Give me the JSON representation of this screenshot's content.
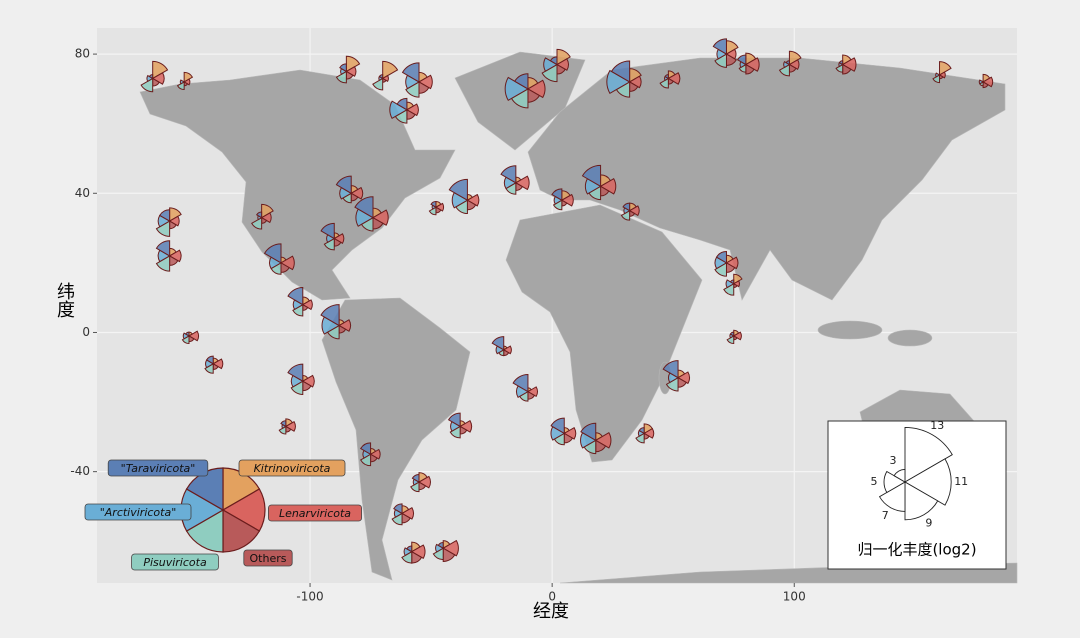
{
  "chart_data": {
    "type": "glyph-map",
    "xlabel": "经度",
    "ylabel": "纬度",
    "xlim": [
      -188,
      192
    ],
    "ylim": [
      -72,
      87.5
    ],
    "xticks": [
      -100,
      0,
      100
    ],
    "yticks": [
      -40,
      0,
      40,
      80
    ],
    "grid": true,
    "groups": [
      {
        "name": "Kitrinoviricota",
        "color": "#e3a15f"
      },
      {
        "name": "Lenarviricota",
        "color": "#d9645f"
      },
      {
        "name": "Others",
        "color": "#b85a5a"
      },
      {
        "name": "Pisuviricota",
        "color": "#8fcdc0"
      },
      {
        "name": "\"Arctiviricota\"",
        "color": "#6aaed6"
      },
      {
        "name": "\"Taraviricota\"",
        "color": "#5b7fb5"
      }
    ],
    "abundance_key": {
      "title": "归一化丰度(log2)",
      "ticks": [
        3,
        5,
        7,
        9,
        11,
        13
      ]
    },
    "sites": [
      {
        "lon": -165,
        "lat": 73,
        "values": [
          9,
          6,
          4,
          7,
          3,
          2
        ]
      },
      {
        "lon": -152,
        "lat": 72,
        "values": [
          5,
          3,
          2,
          4,
          2,
          0
        ]
      },
      {
        "lon": -85,
        "lat": 75,
        "values": [
          8,
          5,
          4,
          6,
          3,
          4
        ]
      },
      {
        "lon": -70,
        "lat": 73,
        "values": [
          9,
          3,
          2,
          6,
          2,
          2
        ]
      },
      {
        "lon": -55,
        "lat": 72,
        "values": [
          5,
          7,
          6,
          8,
          7,
          10
        ]
      },
      {
        "lon": -60,
        "lat": 64,
        "values": [
          4,
          6,
          5,
          7,
          9,
          6
        ]
      },
      {
        "lon": -10,
        "lat": 70,
        "values": [
          6,
          9,
          7,
          10,
          12,
          8
        ]
      },
      {
        "lon": 2,
        "lat": 77,
        "values": [
          8,
          6,
          5,
          9,
          7,
          4
        ]
      },
      {
        "lon": 32,
        "lat": 72,
        "values": [
          7,
          6,
          5,
          8,
          12,
          11
        ]
      },
      {
        "lon": 48,
        "lat": 73,
        "values": [
          4,
          6,
          3,
          5,
          2,
          2
        ]
      },
      {
        "lon": 72,
        "lat": 80,
        "values": [
          7,
          5,
          6,
          7,
          5,
          8
        ]
      },
      {
        "lon": 80,
        "lat": 77,
        "values": [
          6,
          7,
          5,
          4,
          3,
          5
        ]
      },
      {
        "lon": 98,
        "lat": 77,
        "values": [
          7,
          5,
          4,
          6,
          3,
          2
        ]
      },
      {
        "lon": 120,
        "lat": 77,
        "values": [
          5,
          7,
          5,
          4,
          2,
          2
        ]
      },
      {
        "lon": 160,
        "lat": 74,
        "values": [
          7,
          3,
          2,
          4,
          2,
          0
        ]
      },
      {
        "lon": 178,
        "lat": 72,
        "values": [
          4,
          5,
          3,
          2,
          2,
          0
        ]
      },
      {
        "lon": -158,
        "lat": 32,
        "values": [
          7,
          5,
          4,
          8,
          6,
          6
        ]
      },
      {
        "lon": -158,
        "lat": 22,
        "values": [
          4,
          6,
          5,
          8,
          6,
          8
        ]
      },
      {
        "lon": -112,
        "lat": 20,
        "values": [
          3,
          7,
          5,
          6,
          6,
          10
        ]
      },
      {
        "lon": -120,
        "lat": 33,
        "values": [
          7,
          5,
          3,
          6,
          2,
          3
        ]
      },
      {
        "lon": -83,
        "lat": 40,
        "values": [
          4,
          6,
          4,
          5,
          6,
          9
        ]
      },
      {
        "lon": -74,
        "lat": 33,
        "values": [
          5,
          8,
          6,
          7,
          9,
          11
        ]
      },
      {
        "lon": -90,
        "lat": 27,
        "values": [
          3,
          5,
          4,
          6,
          4,
          8
        ]
      },
      {
        "lon": -48,
        "lat": 36,
        "values": [
          3,
          4,
          3,
          4,
          2,
          3
        ]
      },
      {
        "lon": -35,
        "lat": 38,
        "values": [
          3,
          6,
          5,
          7,
          8,
          11
        ]
      },
      {
        "lon": -15,
        "lat": 43,
        "values": [
          3,
          7,
          4,
          6,
          6,
          9
        ]
      },
      {
        "lon": 4,
        "lat": 38,
        "values": [
          5,
          6,
          3,
          5,
          4,
          6
        ]
      },
      {
        "lon": 20,
        "lat": 42,
        "values": [
          6,
          8,
          5,
          7,
          8,
          11
        ]
      },
      {
        "lon": 32,
        "lat": 35,
        "values": [
          4,
          5,
          3,
          5,
          3,
          4
        ]
      },
      {
        "lon": 72,
        "lat": 20,
        "values": [
          4,
          6,
          5,
          7,
          6,
          6
        ]
      },
      {
        "lon": 75,
        "lat": 14,
        "values": [
          5,
          3,
          2,
          6,
          4,
          2
        ]
      },
      {
        "lon": -103,
        "lat": 8,
        "values": [
          4,
          5,
          3,
          6,
          5,
          9
        ]
      },
      {
        "lon": -88,
        "lat": 2,
        "values": [
          3,
          6,
          4,
          7,
          9,
          11
        ]
      },
      {
        "lon": -150,
        "lat": -1,
        "values": [
          2,
          5,
          3,
          4,
          3,
          2
        ]
      },
      {
        "lon": -140,
        "lat": -9,
        "values": [
          3,
          5,
          3,
          5,
          4,
          4
        ]
      },
      {
        "lon": -103,
        "lat": -14,
        "values": [
          3,
          6,
          5,
          7,
          6,
          9
        ]
      },
      {
        "lon": -20,
        "lat": -5,
        "values": [
          2,
          4,
          3,
          3,
          4,
          7
        ]
      },
      {
        "lon": -10,
        "lat": -17,
        "values": [
          2,
          5,
          4,
          5,
          6,
          9
        ]
      },
      {
        "lon": -38,
        "lat": -27,
        "values": [
          3,
          6,
          4,
          6,
          5,
          7
        ]
      },
      {
        "lon": 5,
        "lat": -29,
        "values": [
          3,
          6,
          5,
          6,
          7,
          8
        ]
      },
      {
        "lon": 18,
        "lat": -31,
        "values": [
          4,
          8,
          6,
          7,
          8,
          9
        ]
      },
      {
        "lon": 38,
        "lat": -29,
        "values": [
          5,
          5,
          3,
          5,
          3,
          3
        ]
      },
      {
        "lon": 52,
        "lat": -13,
        "values": [
          4,
          6,
          5,
          7,
          5,
          9
        ]
      },
      {
        "lon": 75,
        "lat": -1,
        "values": [
          3,
          4,
          2,
          4,
          2,
          2
        ]
      },
      {
        "lon": -110,
        "lat": -27,
        "values": [
          4,
          5,
          3,
          4,
          2,
          3
        ]
      },
      {
        "lon": -75,
        "lat": -35,
        "values": [
          3,
          5,
          4,
          6,
          4,
          6
        ]
      },
      {
        "lon": -55,
        "lat": -43,
        "values": [
          5,
          6,
          4,
          5,
          3,
          4
        ]
      },
      {
        "lon": -62,
        "lat": -52,
        "values": [
          4,
          6,
          5,
          6,
          4,
          5
        ]
      },
      {
        "lon": -58,
        "lat": -63,
        "values": [
          5,
          7,
          6,
          6,
          4,
          3
        ]
      },
      {
        "lon": -45,
        "lat": -62,
        "values": [
          4,
          8,
          7,
          6,
          4,
          3
        ]
      }
    ]
  }
}
